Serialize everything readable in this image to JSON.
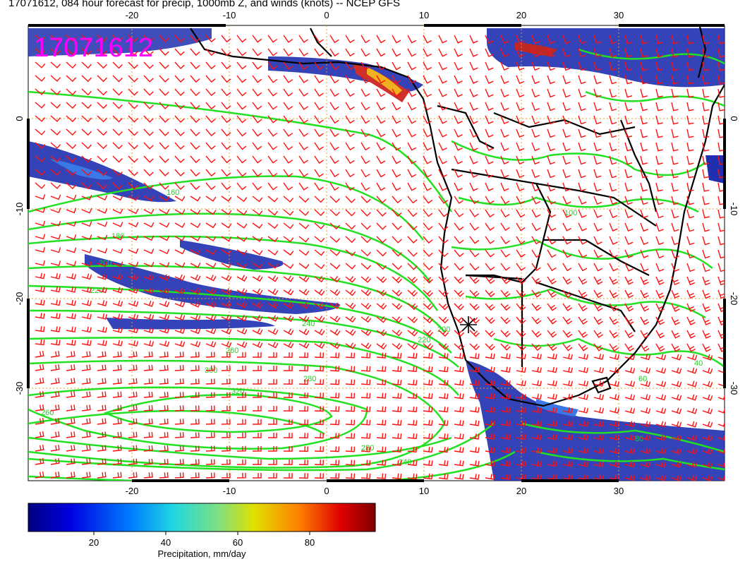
{
  "title": "17071612, 084 hour forecast for precip, 1000mb Z, and winds (knots) -- NCEP GFS",
  "stamp": "17071612",
  "axes": {
    "x_ticks_top": [
      "-20",
      "-10",
      "0",
      "10",
      "20",
      "30"
    ],
    "x_ticks_bottom": [
      "-20",
      "-10",
      "0",
      "10",
      "20",
      "30"
    ],
    "y_ticks_left": [
      "0",
      "-10",
      "-20",
      "-30"
    ],
    "y_ticks_right": [
      "0",
      "-10",
      "-20",
      "-30"
    ]
  },
  "contour_labels": [
    "160",
    "180",
    "200",
    "220",
    "240",
    "260",
    "280",
    "300",
    "320",
    "280",
    "260",
    "240",
    "220",
    "200",
    "100",
    "80",
    "60",
    "40"
  ],
  "colorbar": {
    "ticks": [
      "20",
      "40",
      "60",
      "80"
    ],
    "label": "Precipitation, mm/day"
  },
  "colors": {
    "contour": "#22e022",
    "wind_barb": "#ff1010",
    "coast": "#000000",
    "grid": "#e0a020",
    "stamp": "#ff00ff"
  },
  "icons": {
    "station": "asterisk-icon",
    "wind": "wind-barb-icon"
  }
}
